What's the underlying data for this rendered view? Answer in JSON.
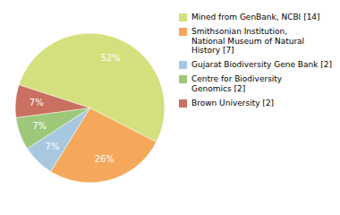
{
  "chart_data": {
    "type": "pie",
    "categories": [
      "Mined from GenBank, NCBI [14]",
      "Smithsonian Institution,\nNational Museum of Natural\nHistory [7]",
      "Gujarat Biodiversity Gene Bank [2]",
      "Centre for Biodiversity\nGenomics [2]",
      "Brown University [2]"
    ],
    "values": [
      52,
      26,
      7,
      7,
      7
    ],
    "value_labels": [
      "52%",
      "26%",
      "7%",
      "7%",
      "7%"
    ],
    "colors": [
      "#d4df7e",
      "#f5a85c",
      "#a8c8e0",
      "#9dc87a",
      "#c97060"
    ],
    "data_labels": true,
    "legend": "right"
  }
}
